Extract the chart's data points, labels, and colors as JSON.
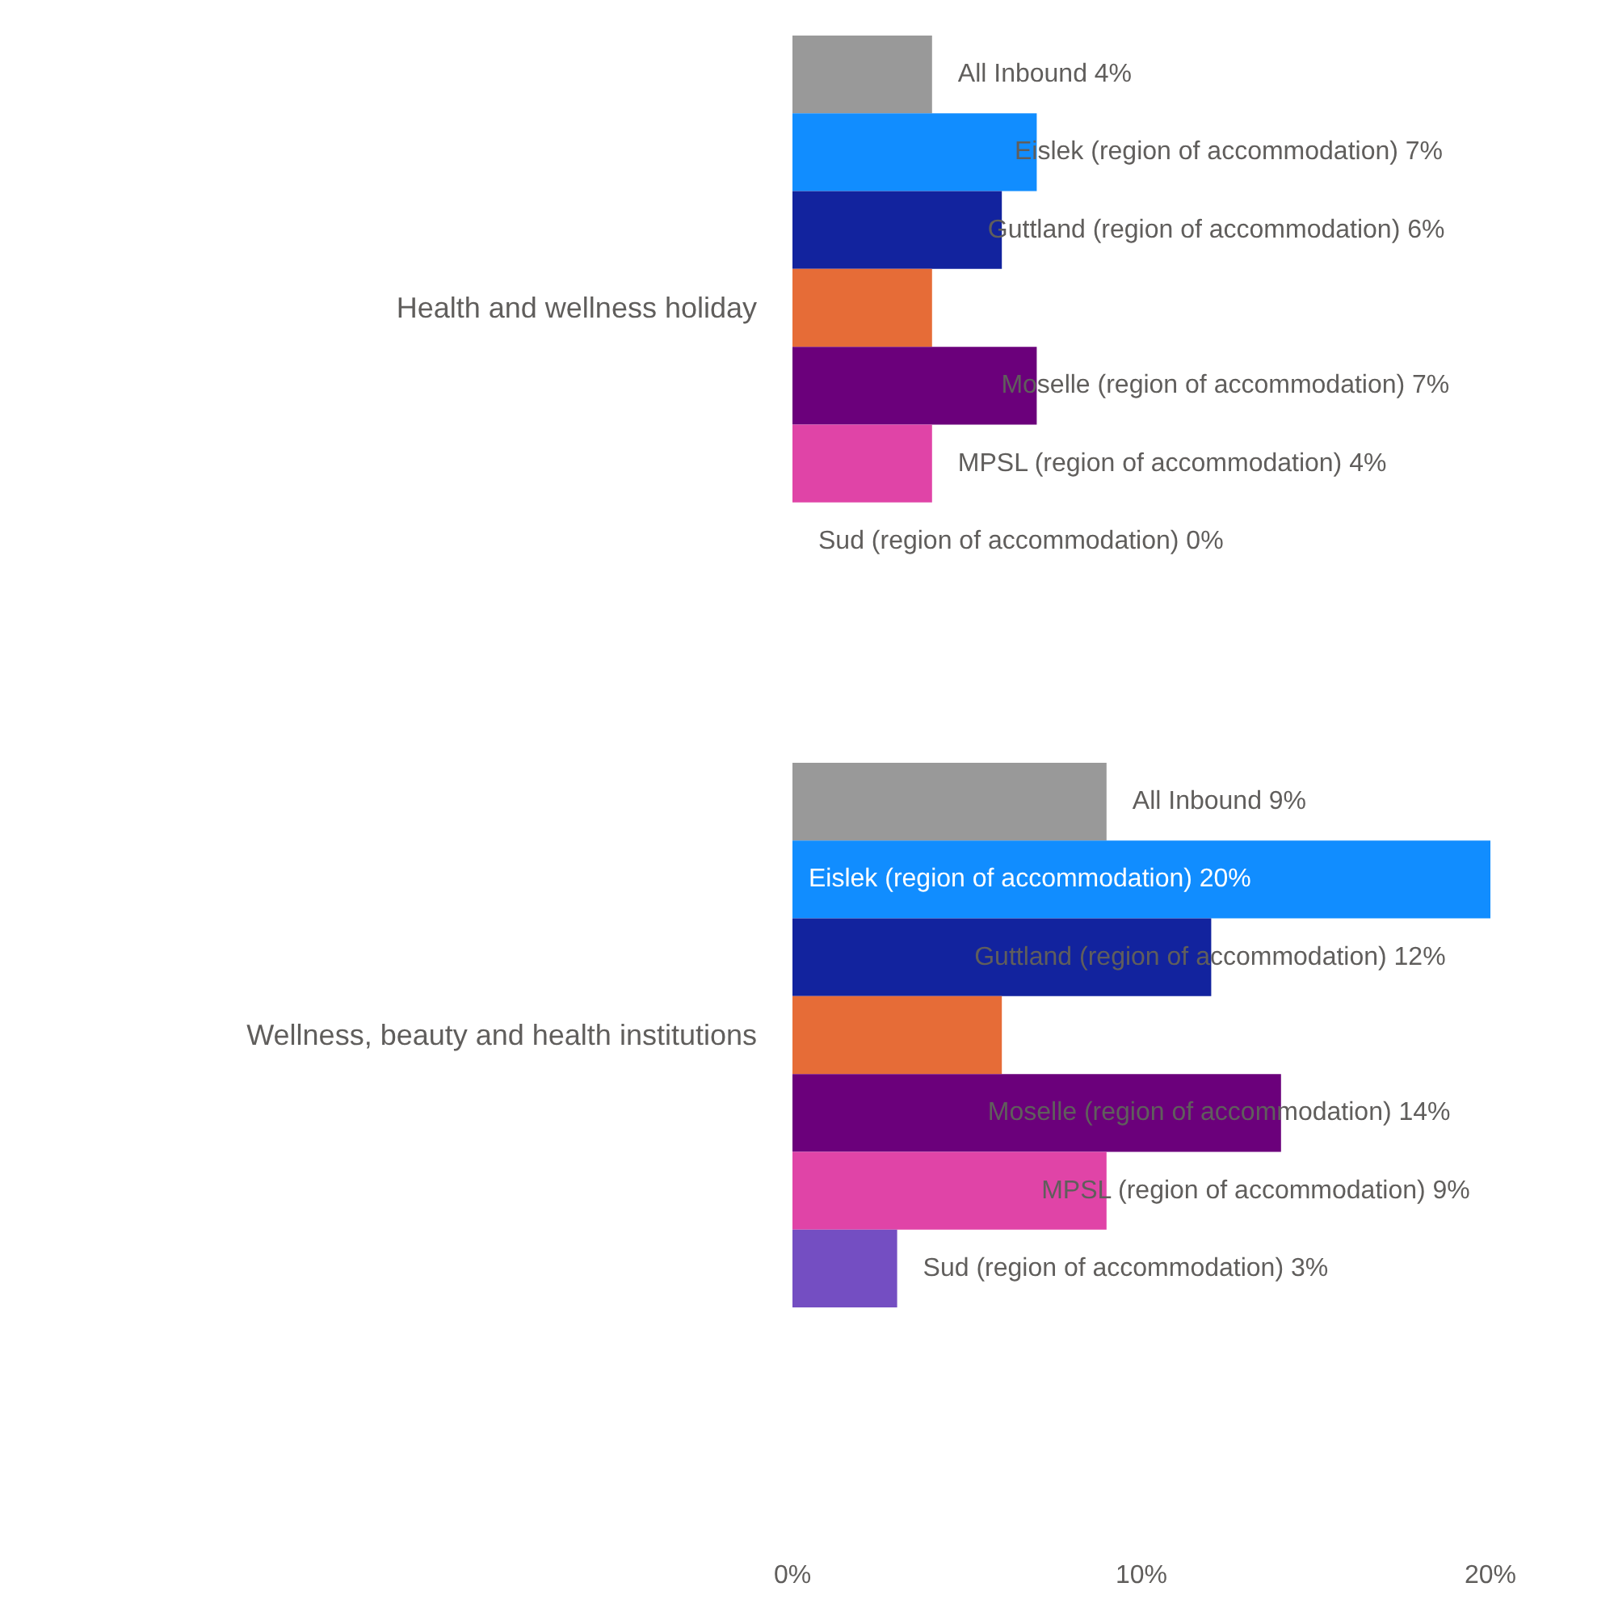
{
  "chart_data": {
    "type": "bar",
    "orientation": "horizontal",
    "categories": [
      "Health and wellness holiday",
      "Wellness, beauty and health institutions"
    ],
    "series": [
      {
        "name": "All Inbound",
        "color": "#999999",
        "values": [
          4,
          9
        ],
        "value_labels": [
          "4%",
          "9%"
        ]
      },
      {
        "name": "Eislek (region of accommodation)",
        "color": "#118dff",
        "values": [
          7,
          20
        ],
        "value_labels": [
          "7%",
          "20%"
        ]
      },
      {
        "name": "Guttland (region of accommodation)",
        "color": "#12239e",
        "values": [
          6,
          12
        ],
        "value_labels": [
          "6%",
          "12%"
        ]
      },
      {
        "color": "#e66c37",
        "values": [
          4,
          6
        ]
      },
      {
        "name": "Moselle (region of accommodation)",
        "color": "#6b007b",
        "values": [
          7,
          14
        ],
        "value_labels": [
          "7%",
          "14%"
        ]
      },
      {
        "name": "MPSL (region of accommodation)",
        "color": "#e044a7",
        "values": [
          4,
          9
        ],
        "value_labels": [
          "4%",
          "9%"
        ]
      },
      {
        "name": "Sud (region of accommodation)",
        "color": "#744ec2",
        "values": [
          0,
          3
        ],
        "value_labels": [
          "0%",
          "3%"
        ]
      }
    ],
    "xlim": [
      0,
      20
    ],
    "xticks": [
      {
        "value": 0,
        "label": "0%"
      },
      {
        "value": 10,
        "label": "10%"
      },
      {
        "value": 20,
        "label": "20%"
      }
    ]
  }
}
